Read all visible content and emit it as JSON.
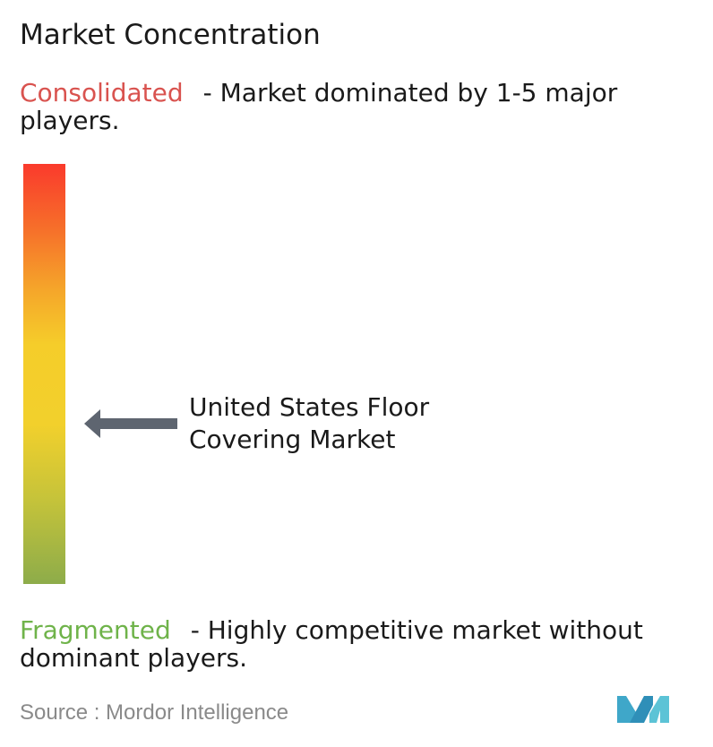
{
  "title": "Market Concentration",
  "consolidated": {
    "term": "Consolidated",
    "description": "- Market dominated by 1-5 major players."
  },
  "fragmented": {
    "term": "Fragmented",
    "description": "- Highly competitive market without dominant players."
  },
  "market_label": "United States Floor Covering Market",
  "source": "Source : Mordor Intelligence",
  "colors": {
    "consolidated": "#d9534f",
    "fragmented": "#6fb34a",
    "arrow": "#5e6570",
    "logo": "#3fa7c9"
  },
  "icons": {
    "marker": "left-arrow-icon",
    "logo": "mordor-intelligence-logo"
  },
  "chart_data": {
    "type": "gradient-scale",
    "scale_top": "Consolidated",
    "scale_bottom": "Fragmented",
    "marker": {
      "label": "United States Floor Covering Market",
      "position_fraction_from_top": 0.62
    }
  }
}
